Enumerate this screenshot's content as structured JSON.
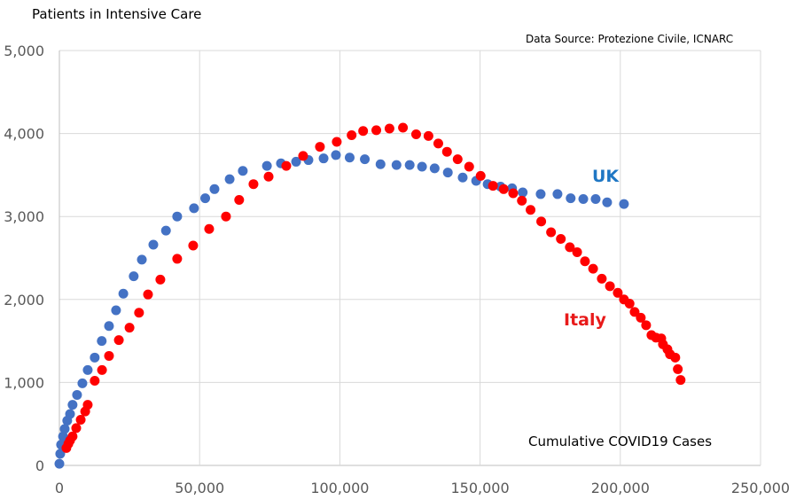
{
  "chart_data": {
    "type": "scatter",
    "title": "Patients in Intensive Care",
    "annotation_source": "Data Source: Protezione Civile, ICNARC",
    "xlabel": "Cumulative COVID19 Cases",
    "ylabel": "Patients in Intensive Care",
    "xlim": [
      0,
      250000
    ],
    "ylim": [
      0,
      5000
    ],
    "grid": true,
    "x_ticks": [
      "0",
      "50,000",
      "100,000",
      "150,000",
      "200,000",
      "250,000"
    ],
    "y_ticks": [
      "0",
      "1,000",
      "2,000",
      "3,000",
      "4,000",
      "5,000"
    ],
    "x_tick_values": [
      0,
      50000,
      100000,
      150000,
      200000,
      250000
    ],
    "y_tick_values": [
      0,
      1000,
      2000,
      3000,
      4000,
      5000
    ],
    "series": [
      {
        "name": "UK",
        "label": "UK",
        "color": "#4472C4",
        "label_color": "#1F77C4",
        "points": [
          [
            0,
            20
          ],
          [
            300,
            140
          ],
          [
            600,
            250
          ],
          [
            1300,
            350
          ],
          [
            1900,
            440
          ],
          [
            2800,
            540
          ],
          [
            3800,
            620
          ],
          [
            4700,
            730
          ],
          [
            6300,
            850
          ],
          [
            8200,
            990
          ],
          [
            10100,
            1150
          ],
          [
            12600,
            1300
          ],
          [
            15100,
            1500
          ],
          [
            17700,
            1680
          ],
          [
            20200,
            1870
          ],
          [
            22800,
            2070
          ],
          [
            26500,
            2280
          ],
          [
            29400,
            2480
          ],
          [
            33500,
            2660
          ],
          [
            38000,
            2830
          ],
          [
            42000,
            3000
          ],
          [
            48000,
            3100
          ],
          [
            52000,
            3220
          ],
          [
            55300,
            3330
          ],
          [
            60700,
            3450
          ],
          [
            65400,
            3550
          ],
          [
            74000,
            3610
          ],
          [
            79000,
            3640
          ],
          [
            84400,
            3660
          ],
          [
            88800,
            3680
          ],
          [
            94200,
            3700
          ],
          [
            98600,
            3740
          ],
          [
            103500,
            3710
          ],
          [
            108900,
            3690
          ],
          [
            114500,
            3630
          ],
          [
            120200,
            3620
          ],
          [
            124900,
            3620
          ],
          [
            129300,
            3600
          ],
          [
            133800,
            3580
          ],
          [
            138500,
            3530
          ],
          [
            143800,
            3470
          ],
          [
            148600,
            3430
          ],
          [
            152700,
            3390
          ],
          [
            157300,
            3360
          ],
          [
            161400,
            3340
          ],
          [
            165200,
            3290
          ],
          [
            171600,
            3270
          ],
          [
            177600,
            3270
          ],
          [
            182300,
            3220
          ],
          [
            186800,
            3210
          ],
          [
            191200,
            3210
          ],
          [
            195300,
            3170
          ],
          [
            201300,
            3150
          ]
        ]
      },
      {
        "name": "Italy",
        "label": "Italy",
        "color": "#FF0000",
        "label_color": "#E81A1A",
        "points": [
          [
            2500,
            210
          ],
          [
            3200,
            260
          ],
          [
            3800,
            300
          ],
          [
            4700,
            350
          ],
          [
            6000,
            450
          ],
          [
            7600,
            550
          ],
          [
            9200,
            650
          ],
          [
            10100,
            730
          ],
          [
            12600,
            1020
          ],
          [
            15200,
            1150
          ],
          [
            17700,
            1320
          ],
          [
            21200,
            1510
          ],
          [
            25000,
            1660
          ],
          [
            28400,
            1840
          ],
          [
            31600,
            2060
          ],
          [
            36000,
            2240
          ],
          [
            42000,
            2490
          ],
          [
            47700,
            2650
          ],
          [
            53400,
            2850
          ],
          [
            59400,
            3000
          ],
          [
            64100,
            3200
          ],
          [
            69200,
            3390
          ],
          [
            74600,
            3480
          ],
          [
            80900,
            3610
          ],
          [
            86900,
            3730
          ],
          [
            92900,
            3840
          ],
          [
            98900,
            3900
          ],
          [
            104200,
            3980
          ],
          [
            108300,
            4030
          ],
          [
            113000,
            4040
          ],
          [
            117700,
            4060
          ],
          [
            122500,
            4070
          ],
          [
            127200,
            3990
          ],
          [
            131600,
            3970
          ],
          [
            135100,
            3880
          ],
          [
            138200,
            3780
          ],
          [
            142000,
            3690
          ],
          [
            146100,
            3600
          ],
          [
            150200,
            3490
          ],
          [
            154600,
            3370
          ],
          [
            158400,
            3330
          ],
          [
            161800,
            3280
          ],
          [
            164900,
            3190
          ],
          [
            168000,
            3080
          ],
          [
            171800,
            2940
          ],
          [
            175300,
            2810
          ],
          [
            178800,
            2730
          ],
          [
            182000,
            2630
          ],
          [
            184600,
            2570
          ],
          [
            187400,
            2460
          ],
          [
            190300,
            2370
          ],
          [
            193400,
            2250
          ],
          [
            196300,
            2160
          ],
          [
            199100,
            2080
          ],
          [
            201300,
            2000
          ],
          [
            203300,
            1950
          ],
          [
            205100,
            1850
          ],
          [
            207300,
            1780
          ],
          [
            209200,
            1690
          ],
          [
            211100,
            1570
          ],
          [
            212700,
            1540
          ],
          [
            214600,
            1530
          ],
          [
            215200,
            1460
          ],
          [
            216800,
            1400
          ],
          [
            217700,
            1340
          ],
          [
            219600,
            1300
          ],
          [
            220500,
            1160
          ],
          [
            221500,
            1030
          ]
        ]
      }
    ]
  }
}
